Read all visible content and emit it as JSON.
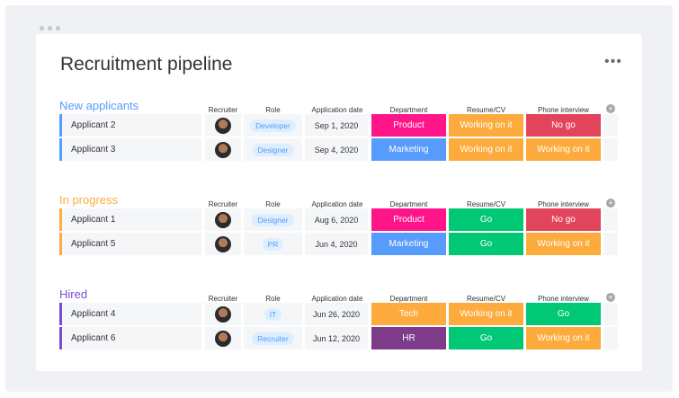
{
  "title": "Recruitment pipeline",
  "columns": {
    "recruiter": "Recruiter",
    "role": "Role",
    "date": "Application date",
    "department": "Department",
    "resume": "Resume/CV",
    "phone": "Phone interview"
  },
  "colors": {
    "Product": "#ff158a",
    "Marketing": "#579bfc",
    "Tech": "#fdab3d",
    "HR": "#7e3b8a",
    "Working on it": "#fdab3d",
    "No go": "#e2445c",
    "Go": "#00c875"
  },
  "groups": [
    {
      "title": "New applicants",
      "color": "#579bfc",
      "rows": [
        {
          "name": "Applicant 2",
          "role": "Developer",
          "date": "Sep 1, 2020",
          "department": "Product",
          "resume": "Working on it",
          "phone": "No go"
        },
        {
          "name": "Applicant 3",
          "role": "Designer",
          "date": "Sep 4, 2020",
          "department": "Marketing",
          "resume": "Working on it",
          "phone": "Working on it"
        }
      ]
    },
    {
      "title": "In progress",
      "color": "#fdab3d",
      "rows": [
        {
          "name": "Applicant 1",
          "role": "Designer",
          "date": "Aug 6, 2020",
          "department": "Product",
          "resume": "Go",
          "phone": "No go"
        },
        {
          "name": "Applicant 5",
          "role": "PR",
          "date": "Jun 4, 2020",
          "department": "Marketing",
          "resume": "Go",
          "phone": "Working on it"
        }
      ]
    },
    {
      "title": "Hired",
      "color": "#784bd1",
      "rows": [
        {
          "name": "Applicant 4",
          "role": "IT",
          "date": "Jun 26, 2020",
          "department": "Tech",
          "resume": "Working on it",
          "phone": "Go"
        },
        {
          "name": "Applicant 6",
          "role": "Recruiter",
          "date": "Jun 12, 2020",
          "department": "HR",
          "resume": "Go",
          "phone": "Working on it"
        }
      ]
    }
  ]
}
